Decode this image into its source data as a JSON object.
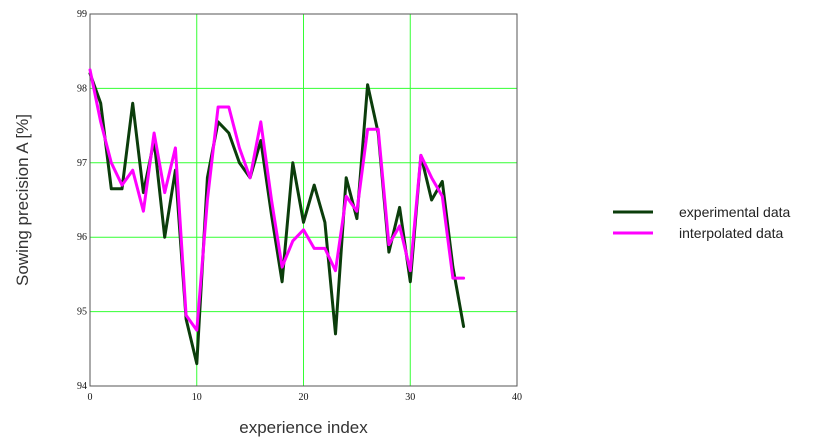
{
  "chart_data": {
    "type": "line",
    "xlabel": "experience index",
    "ylabel": "Sowing precision A [%]",
    "xlim": [
      0,
      40
    ],
    "ylim": [
      94,
      99
    ],
    "xticks": [
      "0",
      "10",
      "20",
      "30",
      "40"
    ],
    "yticks": [
      "94",
      "95",
      "96",
      "97",
      "98",
      "99"
    ],
    "grid": true,
    "legend_position": "right",
    "series": [
      {
        "name": "experimental data",
        "color": "#0b3d0b",
        "x": [
          0,
          1,
          2,
          3,
          4,
          5,
          6,
          7,
          8,
          9,
          10,
          11,
          12,
          13,
          14,
          15,
          16,
          17,
          18,
          19,
          20,
          21,
          22,
          23,
          24,
          25,
          26,
          27,
          28,
          29,
          30,
          31,
          32,
          33,
          34,
          35
        ],
        "values": [
          98.2,
          97.8,
          96.65,
          96.65,
          97.8,
          96.6,
          97.3,
          96.0,
          96.9,
          94.9,
          94.3,
          96.8,
          97.55,
          97.4,
          97.0,
          96.8,
          97.3,
          96.3,
          95.4,
          97.0,
          96.2,
          96.7,
          96.2,
          94.7,
          96.8,
          96.25,
          98.05,
          97.4,
          95.8,
          96.4,
          95.4,
          97.1,
          96.5,
          96.75,
          95.6,
          94.8
        ]
      },
      {
        "name": "interpolated data",
        "color": "#ff00ff",
        "x": [
          0,
          1,
          2,
          3,
          4,
          5,
          6,
          7,
          8,
          9,
          10,
          11,
          12,
          13,
          14,
          15,
          16,
          17,
          18,
          19,
          20,
          21,
          22,
          23,
          24,
          25,
          26,
          27,
          28,
          29,
          30,
          31,
          32,
          33,
          34,
          35
        ],
        "values": [
          98.25,
          97.55,
          97.0,
          96.7,
          96.9,
          96.35,
          97.4,
          96.6,
          97.2,
          94.95,
          94.75,
          96.5,
          97.75,
          97.75,
          97.2,
          96.8,
          97.55,
          96.5,
          95.6,
          95.95,
          96.1,
          95.85,
          95.85,
          95.55,
          96.55,
          96.35,
          97.45,
          97.45,
          95.9,
          96.15,
          95.55,
          97.1,
          96.8,
          96.55,
          95.45,
          95.45
        ]
      }
    ]
  }
}
